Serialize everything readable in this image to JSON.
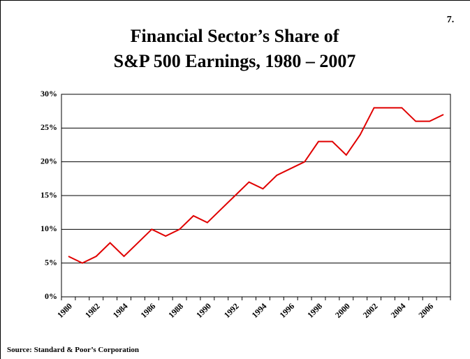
{
  "chart_data": {
    "type": "line",
    "title": [
      "Financial Sector’s Share of",
      "S&P 500 Earnings, 1980 – 2007"
    ],
    "page_number": "7.",
    "source": "Source: Standard & Poor’s Corporation",
    "categories": [
      "1980",
      null,
      "1982",
      null,
      "1984",
      null,
      "1986",
      null,
      "1988",
      null,
      "1990",
      null,
      "1992",
      null,
      "1994",
      null,
      "1996",
      null,
      "1998",
      null,
      "2000",
      null,
      "2002",
      null,
      "2004",
      null,
      "2006",
      null
    ],
    "series": [
      {
        "name": "Financial share",
        "color": "#e00000",
        "values": [
          6,
          5,
          6,
          8,
          6,
          8,
          10,
          9,
          10,
          12,
          11,
          13,
          15,
          17,
          16,
          18,
          19,
          20,
          23,
          23,
          21,
          24,
          28,
          28,
          28,
          26,
          26,
          27
        ]
      }
    ],
    "ylim": [
      0,
      30
    ],
    "yticks": [
      {
        "value": 0,
        "label": "0%"
      },
      {
        "value": 5,
        "label": "5%"
      },
      {
        "value": 10,
        "label": "10%"
      },
      {
        "value": 15,
        "label": "15%"
      },
      {
        "value": 20,
        "label": "20%"
      },
      {
        "value": 25,
        "label": "25%"
      },
      {
        "value": 30,
        "label": "30%"
      }
    ],
    "grid": true
  }
}
